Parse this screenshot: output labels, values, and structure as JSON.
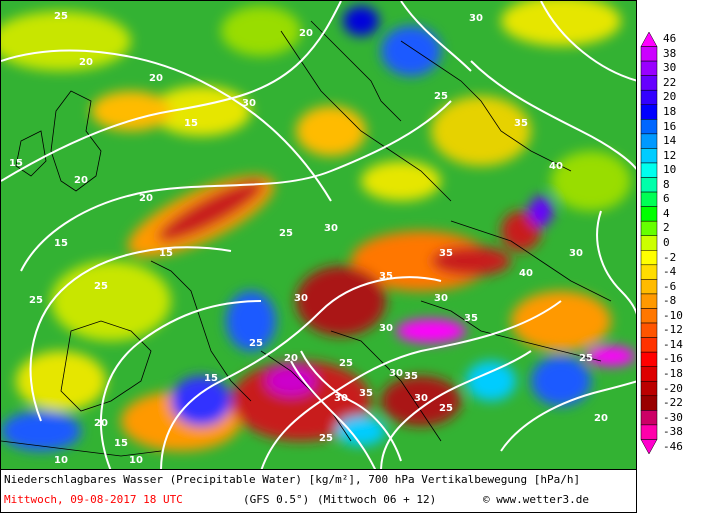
{
  "title": "Niederschlagbares Wasser (Precipitable Water) [kg/m²], 700 hPa Vertikalbewegung [hPa/h]",
  "date_label": "Mittwoch, 09-08-2017  18 UTC",
  "model_label": "(GFS 0.5°)",
  "run_label": "(Mittwoch 06 + 12)",
  "copyright": "© www.wetter3.de",
  "colors": {
    "ascent_red": "#c81e1e",
    "ascent_magenta": "#ff00ff",
    "neutral_green": "#33b233",
    "subsidence_blue": "#1e5aff",
    "contour_white": "#ffffff"
  },
  "legend": {
    "values": [
      "46",
      "38",
      "30",
      "22",
      "20",
      "18",
      "16",
      "14",
      "12",
      "10",
      "8",
      "6",
      "4",
      "2",
      "0",
      "-2",
      "-4",
      "-6",
      "-8",
      "-10",
      "-12",
      "-14",
      "-16",
      "-18",
      "-20",
      "-22",
      "-30",
      "-38",
      "-46"
    ],
    "colors": [
      "#ff00ff",
      "#cc00ff",
      "#9900ff",
      "#6600ff",
      "#3300ff",
      "#0000ff",
      "#0066ff",
      "#0099ff",
      "#00ccff",
      "#00ffee",
      "#00ffaa",
      "#00ff55",
      "#00ff00",
      "#66ff00",
      "#ccff00",
      "#ffff00",
      "#ffdd00",
      "#ffbb00",
      "#ff9900",
      "#ff7700",
      "#ff5500",
      "#ff3300",
      "#ff0000",
      "#dd0000",
      "#bb0000",
      "#990000",
      "#cc0066",
      "#ff00aa",
      "#ff00cc"
    ]
  },
  "contour_labels": [
    "25",
    "20",
    "20",
    "15",
    "15",
    "25",
    "30",
    "15",
    "20",
    "15",
    "25",
    "30",
    "20",
    "25",
    "30",
    "35",
    "30",
    "35",
    "20",
    "30",
    "25",
    "35",
    "40",
    "30",
    "35",
    "25",
    "20",
    "10",
    "15",
    "25",
    "30",
    "35",
    "30",
    "25",
    "20",
    "15",
    "10",
    "25",
    "30",
    "35",
    "40",
    "30",
    "25",
    "20"
  ]
}
